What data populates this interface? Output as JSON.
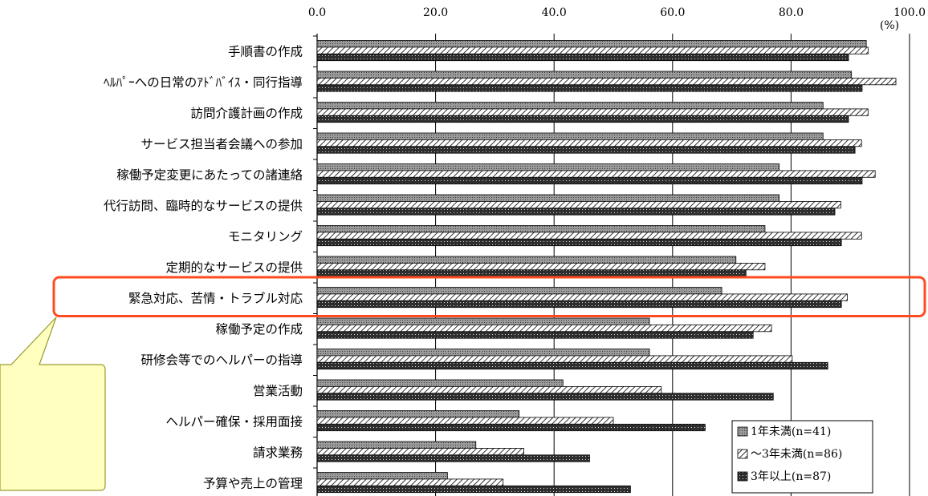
{
  "chart_data": {
    "type": "bar",
    "orientation": "horizontal",
    "unit": "(%)",
    "xlim": [
      0,
      100
    ],
    "ticks": [
      "0.0",
      "20.0",
      "40.0",
      "60.0",
      "80.0",
      "100.0"
    ],
    "categories": [
      "手順書の作成",
      "ﾍﾙﾊﾟｰへの日常のｱﾄﾞﾊﾞｲｽ・同行指導",
      "訪問介護計画の作成",
      "サービス担当者会議への参加",
      "稼働予定変更にあたっての諸連絡",
      "代行訪問、臨時的なサービスの提供",
      "モニタリング",
      "定期的なサービスの提供",
      "緊急対応、苦情・トラブル対応",
      "稼働予定の作成",
      "研修会等でのヘルパーの指導",
      "営業活動",
      "ヘルパー確保・採用面接",
      "請求業務",
      "予算や売上の管理"
    ],
    "series": [
      {
        "name": "1年未満(n=41)",
        "values": [
          92.7,
          90.2,
          85.4,
          85.4,
          78.0,
          78.0,
          75.6,
          70.7,
          68.3,
          56.1,
          56.1,
          41.5,
          34.1,
          26.8,
          22.0
        ]
      },
      {
        "name": "～3年未満(n=86)",
        "values": [
          93.0,
          97.7,
          93.0,
          91.9,
          94.2,
          88.4,
          91.9,
          75.6,
          89.5,
          76.7,
          80.2,
          58.1,
          50.0,
          34.9,
          31.4
        ]
      },
      {
        "name": "3年以上(n=87)",
        "values": [
          89.7,
          92.0,
          89.7,
          90.8,
          92.0,
          87.4,
          88.5,
          72.4,
          88.5,
          73.6,
          86.2,
          77.0,
          65.5,
          46.0,
          52.9
        ]
      }
    ],
    "legend_position": "bottom-right",
    "grid": true,
    "highlighted_category": "緊急対応、苦情・トラブル対応",
    "colors": {
      "highlight_box": "#ff4b1f",
      "callout_fill": "#ffffc0",
      "callout_stroke": "#9a9a30",
      "series_fills": [
        "#8a8a8a",
        "#ffffff",
        "#333333"
      ]
    }
  }
}
